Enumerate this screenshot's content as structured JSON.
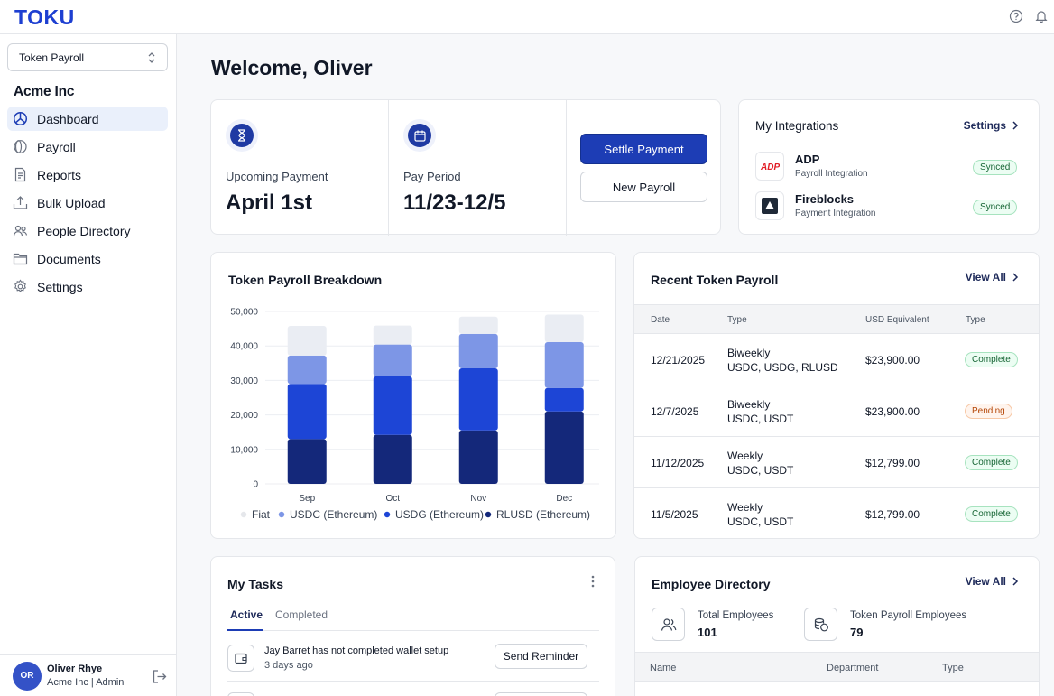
{
  "app": {
    "logo": "TOKU"
  },
  "topbar": {
    "icons": [
      "help-icon",
      "bell-icon"
    ]
  },
  "sidebar": {
    "org_select": "Token Payroll",
    "company": "Acme Inc",
    "items": [
      {
        "label": "Dashboard",
        "icon": "dashboard-icon",
        "active": true
      },
      {
        "label": "Payroll",
        "icon": "payroll-icon"
      },
      {
        "label": "Reports",
        "icon": "reports-icon"
      },
      {
        "label": "Bulk Upload",
        "icon": "upload-icon"
      },
      {
        "label": "People Directory",
        "icon": "people-icon"
      },
      {
        "label": "Documents",
        "icon": "folder-icon"
      },
      {
        "label": "Settings",
        "icon": "gear-icon"
      }
    ],
    "user": {
      "initials": "OR",
      "name": "Oliver Rhye",
      "role": "Acme Inc | Admin"
    }
  },
  "main": {
    "welcome": "Welcome, Oliver",
    "summary": {
      "upcoming_label": "Upcoming Payment",
      "upcoming_value": "April 1st",
      "period_label": "Pay Period",
      "period_value": "11/23-12/5",
      "settle_button": "Settle Payment",
      "new_payroll_button": "New Payroll"
    },
    "integrations": {
      "title": "My Integrations",
      "link": "Settings",
      "items": [
        {
          "name": "ADP",
          "sub": "Payroll Integration",
          "status": "Synced",
          "logo_text": "ADP"
        },
        {
          "name": "Fireblocks",
          "sub": "Payment Integration",
          "status": "Synced"
        }
      ]
    },
    "breakdown": {
      "title": "Token Payroll Breakdown"
    },
    "recent": {
      "title": "Recent Token Payroll",
      "link": "View All",
      "columns": [
        "Date",
        "Type",
        "USD Equivalent",
        "Type"
      ],
      "rows": [
        {
          "date": "12/21/2025",
          "type": "Biweekly",
          "tokens": "USDC, USDG, RLUSD",
          "usd": "$23,900.00",
          "status": "Complete",
          "tone": "green"
        },
        {
          "date": "12/7/2025",
          "type": "Biweekly",
          "tokens": "USDC, USDT",
          "usd": "$23,900.00",
          "status": "Pending",
          "tone": "orange"
        },
        {
          "date": "11/12/2025",
          "type": "Weekly",
          "tokens": "USDC, USDT",
          "usd": "$12,799.00",
          "status": "Complete",
          "tone": "green"
        },
        {
          "date": "11/5/2025",
          "type": "Weekly",
          "tokens": "USDC, USDT",
          "usd": "$12,799.00",
          "status": "Complete",
          "tone": "green"
        }
      ]
    },
    "tasks": {
      "title": "My Tasks",
      "tabs": [
        "Active",
        "Completed"
      ],
      "items": [
        {
          "text": "Jay Barret has not completed wallet setup",
          "sub": "3 days ago",
          "button": "Send Reminder"
        }
      ]
    },
    "directory": {
      "title": "Employee Directory",
      "link": "View All",
      "total_label": "Total Employees",
      "total_value": "101",
      "token_label": "Token Payroll Employees",
      "token_value": "79",
      "columns": [
        "Name",
        "Department",
        "Type"
      ]
    }
  },
  "chart_data": {
    "type": "bar",
    "stacked": true,
    "categories": [
      "Sep",
      "Oct",
      "Nov",
      "Dec"
    ],
    "series": [
      {
        "name": "RLUSD (Ethereum)",
        "color": "#14287a",
        "values": [
          13000,
          14200,
          15500,
          21000
        ]
      },
      {
        "name": "USDG (Ethereum)",
        "color": "#1d45d6",
        "values": [
          16000,
          17000,
          18000,
          6800
        ]
      },
      {
        "name": "USDC (Ethereum)",
        "color": "#7d96e6",
        "values": [
          8200,
          9200,
          10000,
          13300
        ]
      },
      {
        "name": "Fiat",
        "color": "#eaedf3",
        "values": [
          8600,
          5500,
          5000,
          8000
        ]
      }
    ],
    "legend_order": [
      "Fiat",
      "USDC (Ethereum)",
      "USDG (Ethereum)",
      "RLUSD (Ethereum)"
    ],
    "yticks": [
      "0",
      "10,000",
      "20,000",
      "30,000",
      "40,000",
      "50,000"
    ],
    "ylim": [
      0,
      50000
    ],
    "grid": true,
    "legend": "bottom"
  }
}
